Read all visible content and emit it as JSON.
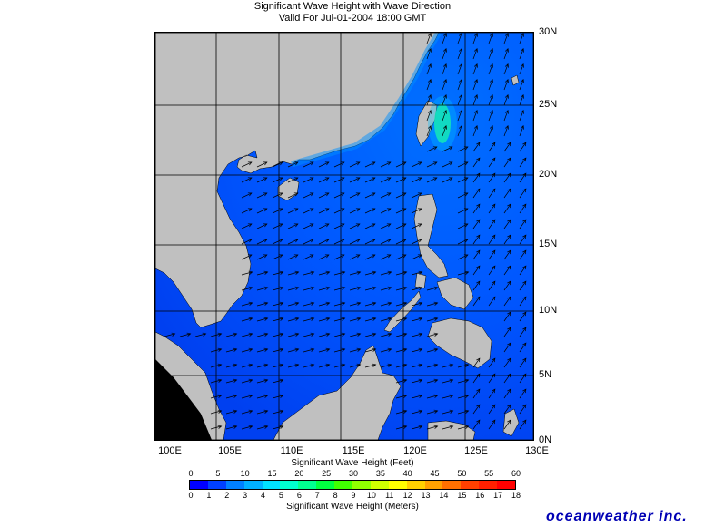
{
  "title_line1": "Significant Wave Height with Wave Direction",
  "title_line2": "Valid For Jul-01-2004 18:00 GMT",
  "lat_labels": [
    "30N",
    "25N",
    "20N",
    "15N",
    "10N",
    "5N",
    "0N"
  ],
  "lon_labels": [
    "100E",
    "105E",
    "110E",
    "115E",
    "120E",
    "125E",
    "130E"
  ],
  "scale_feet_title": "Significant Wave Height (Feet)",
  "scale_feet_ticks": [
    "0",
    "5",
    "10",
    "15",
    "20",
    "25",
    "30",
    "35",
    "40",
    "45",
    "50",
    "55",
    "60"
  ],
  "scale_m_title": "Significant Wave Height (Meters)",
  "scale_m_ticks": [
    "0",
    "1",
    "2",
    "3",
    "4",
    "5",
    "6",
    "7",
    "8",
    "9",
    "10",
    "11",
    "12",
    "13",
    "14",
    "15",
    "16",
    "17",
    "18"
  ],
  "logo": "oceanweather inc.",
  "colors": {
    "land": "#c0c0c0",
    "sea_low": "#0050ff",
    "sea_mid": "#0090ff",
    "sea_high": "#00ff80",
    "scale": [
      "#0000ff",
      "#0040ff",
      "#0080ff",
      "#00b0ff",
      "#00e0ff",
      "#00ffd0",
      "#00ff90",
      "#00ff40",
      "#40ff00",
      "#90ff00",
      "#d0ff00",
      "#ffff00",
      "#ffd000",
      "#ffa000",
      "#ff7000",
      "#ff4000",
      "#ff2000",
      "#ff0000"
    ]
  }
}
